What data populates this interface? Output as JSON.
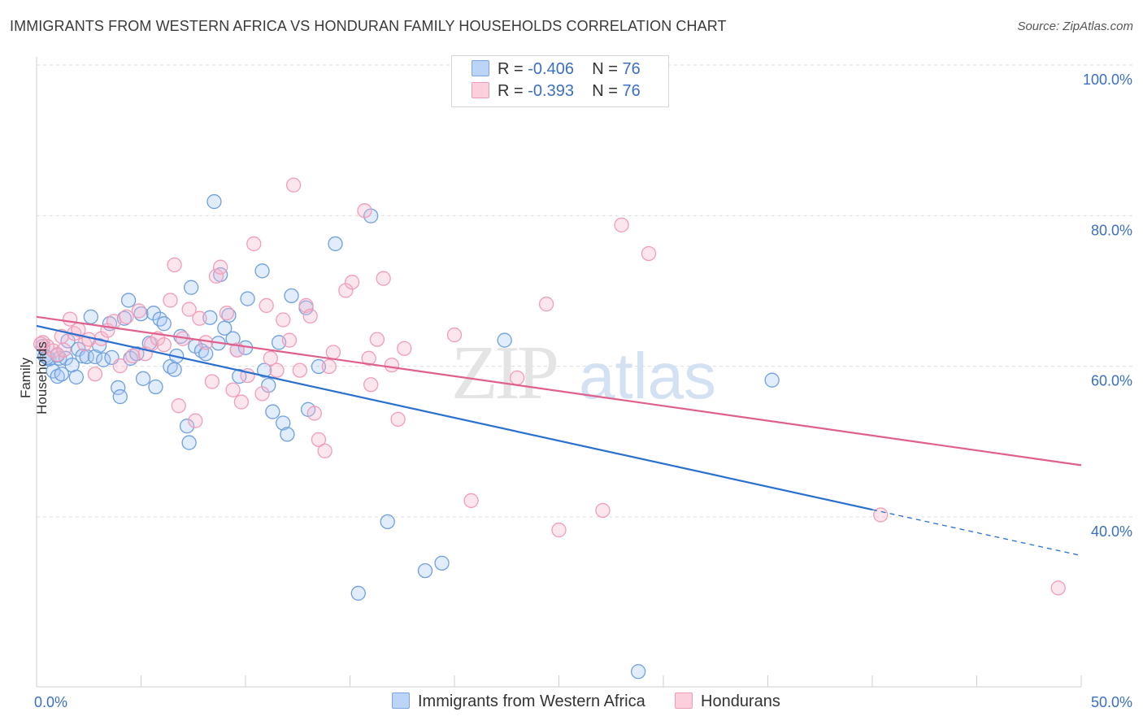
{
  "title": "IMMIGRANTS FROM WESTERN AFRICA VS HONDURAN FAMILY HOUSEHOLDS CORRELATION CHART",
  "source": "Source: ZipAtlas.com",
  "watermark": {
    "zip": "ZIP",
    "atlas": "atlas"
  },
  "legend": {
    "rows": [
      {
        "r_label": "R =",
        "r_value": "-0.406",
        "n_label": "N =",
        "n_value": "76",
        "color": "#a8c8f5"
      },
      {
        "r_label": "R =",
        "r_value": "-0.393",
        "n_label": "N =",
        "n_value": "76",
        "color": "#f7b8cb"
      }
    ]
  },
  "chart_data": {
    "type": "scatter",
    "xlabel": "",
    "ylabel": "Family Households",
    "xlim": [
      0,
      50
    ],
    "ylim": [
      20,
      103
    ],
    "x_tick_labels": [
      "0.0%",
      "50.0%"
    ],
    "y_ticks": [
      40,
      60,
      80,
      100
    ],
    "y_tick_labels": [
      "40.0%",
      "60.0%",
      "80.0%",
      "100.0%"
    ],
    "grid": true,
    "legend_position": "bottom",
    "series": [
      {
        "name": "Immigrants from Western Africa",
        "color": "#6fa0e0",
        "line_color": "#2a6fd0",
        "trend": {
          "x0": 0,
          "y0": 67.2,
          "x1": 40,
          "y1": 42.8,
          "dash_to_x": 50,
          "dash_to_y": 36.7
        },
        "points": [
          [
            0.3,
            64.5
          ],
          [
            0.4,
            63.2
          ],
          [
            0.6,
            62.8
          ],
          [
            0.8,
            61.2
          ],
          [
            1.0,
            60.5
          ],
          [
            1.1,
            62.9
          ],
          [
            1.2,
            60.8
          ],
          [
            1.4,
            62.9
          ],
          [
            1.5,
            65.2
          ],
          [
            1.7,
            62.0
          ],
          [
            1.9,
            60.4
          ],
          [
            2.0,
            64.1
          ],
          [
            2.2,
            63.2
          ],
          [
            2.4,
            63.1
          ],
          [
            2.6,
            68.4
          ],
          [
            2.8,
            63.1
          ],
          [
            3.0,
            64.6
          ],
          [
            3.2,
            62.7
          ],
          [
            3.5,
            67.5
          ],
          [
            3.6,
            63.0
          ],
          [
            3.9,
            59.0
          ],
          [
            4.0,
            57.8
          ],
          [
            4.2,
            68.2
          ],
          [
            4.4,
            70.6
          ],
          [
            4.5,
            62.9
          ],
          [
            4.8,
            63.5
          ],
          [
            5.0,
            68.8
          ],
          [
            5.1,
            60.2
          ],
          [
            5.4,
            64.9
          ],
          [
            5.6,
            68.9
          ],
          [
            5.7,
            59.1
          ],
          [
            5.9,
            68.1
          ],
          [
            6.1,
            67.5
          ],
          [
            6.4,
            61.8
          ],
          [
            6.6,
            61.4
          ],
          [
            6.7,
            63.2
          ],
          [
            6.9,
            65.8
          ],
          [
            7.2,
            53.9
          ],
          [
            7.3,
            51.7
          ],
          [
            7.4,
            72.3
          ],
          [
            7.6,
            64.5
          ],
          [
            7.9,
            63.9
          ],
          [
            8.1,
            63.5
          ],
          [
            8.3,
            68.3
          ],
          [
            8.5,
            83.7
          ],
          [
            8.7,
            64.9
          ],
          [
            8.8,
            74.0
          ],
          [
            9.0,
            66.9
          ],
          [
            9.2,
            68.6
          ],
          [
            9.4,
            65.5
          ],
          [
            9.6,
            64.0
          ],
          [
            9.7,
            60.5
          ],
          [
            10.0,
            64.3
          ],
          [
            10.1,
            70.8
          ],
          [
            10.8,
            74.5
          ],
          [
            10.9,
            61.3
          ],
          [
            11.1,
            59.3
          ],
          [
            11.3,
            55.8
          ],
          [
            11.6,
            65.0
          ],
          [
            11.8,
            54.3
          ],
          [
            12.0,
            52.8
          ],
          [
            12.2,
            71.2
          ],
          [
            12.9,
            69.6
          ],
          [
            13.0,
            56.1
          ],
          [
            13.5,
            61.8
          ],
          [
            14.3,
            78.1
          ],
          [
            15.4,
            31.7
          ],
          [
            16.0,
            81.8
          ],
          [
            16.8,
            41.2
          ],
          [
            18.6,
            34.7
          ],
          [
            19.4,
            35.7
          ],
          [
            22.4,
            65.3
          ],
          [
            28.8,
            21.3
          ],
          [
            35.2,
            60.0
          ],
          [
            0.5,
            63.0
          ],
          [
            1.0,
            63.3
          ]
        ]
      },
      {
        "name": "Hondurans",
        "color": "#f29cb8",
        "line_color": "#e0608c",
        "trend": {
          "x0": 0,
          "y0": 68.4,
          "x1": 50,
          "y1": 48.7
        },
        "points": [
          [
            0.3,
            65.0
          ],
          [
            0.5,
            64.5
          ],
          [
            0.8,
            63.9
          ],
          [
            1.0,
            63.4
          ],
          [
            1.3,
            64.0
          ],
          [
            1.6,
            68.1
          ],
          [
            1.8,
            66.2
          ],
          [
            2.0,
            66.7
          ],
          [
            2.3,
            64.8
          ],
          [
            2.5,
            65.4
          ],
          [
            2.8,
            60.8
          ],
          [
            3.1,
            65.5
          ],
          [
            3.4,
            66.6
          ],
          [
            3.7,
            67.8
          ],
          [
            4.0,
            61.9
          ],
          [
            4.3,
            68.4
          ],
          [
            4.6,
            63.2
          ],
          [
            4.9,
            69.2
          ],
          [
            5.2,
            63.5
          ],
          [
            5.5,
            64.8
          ],
          [
            5.8,
            65.5
          ],
          [
            6.1,
            64.7
          ],
          [
            6.4,
            70.6
          ],
          [
            6.6,
            75.3
          ],
          [
            6.8,
            56.6
          ],
          [
            7.0,
            65.5
          ],
          [
            7.3,
            69.4
          ],
          [
            7.6,
            54.6
          ],
          [
            7.8,
            68.2
          ],
          [
            8.1,
            65.0
          ],
          [
            8.4,
            59.8
          ],
          [
            8.6,
            73.8
          ],
          [
            8.8,
            75.0
          ],
          [
            9.1,
            68.9
          ],
          [
            9.4,
            58.7
          ],
          [
            9.6,
            64.0
          ],
          [
            9.8,
            57.1
          ],
          [
            10.1,
            60.6
          ],
          [
            10.4,
            78.1
          ],
          [
            10.8,
            58.2
          ],
          [
            11.0,
            69.9
          ],
          [
            11.2,
            62.9
          ],
          [
            11.5,
            61.3
          ],
          [
            11.8,
            68.0
          ],
          [
            12.1,
            65.3
          ],
          [
            12.3,
            85.9
          ],
          [
            12.6,
            61.3
          ],
          [
            12.9,
            69.9
          ],
          [
            13.1,
            68.5
          ],
          [
            13.3,
            55.6
          ],
          [
            13.5,
            52.1
          ],
          [
            13.8,
            50.6
          ],
          [
            14.0,
            61.8
          ],
          [
            14.2,
            63.7
          ],
          [
            14.8,
            71.9
          ],
          [
            15.1,
            73.0
          ],
          [
            15.7,
            82.5
          ],
          [
            15.9,
            62.9
          ],
          [
            16.0,
            59.4
          ],
          [
            16.3,
            65.4
          ],
          [
            16.6,
            73.5
          ],
          [
            17.0,
            62.0
          ],
          [
            17.3,
            54.8
          ],
          [
            17.6,
            64.2
          ],
          [
            20.0,
            66.0
          ],
          [
            20.8,
            44.0
          ],
          [
            23.0,
            60.3
          ],
          [
            24.4,
            70.1
          ],
          [
            25.0,
            40.1
          ],
          [
            27.1,
            42.7
          ],
          [
            28.0,
            80.6
          ],
          [
            29.3,
            76.8
          ],
          [
            40.4,
            42.1
          ],
          [
            48.9,
            32.4
          ],
          [
            0.2,
            64.8
          ],
          [
            1.2,
            65.8
          ]
        ]
      }
    ]
  }
}
